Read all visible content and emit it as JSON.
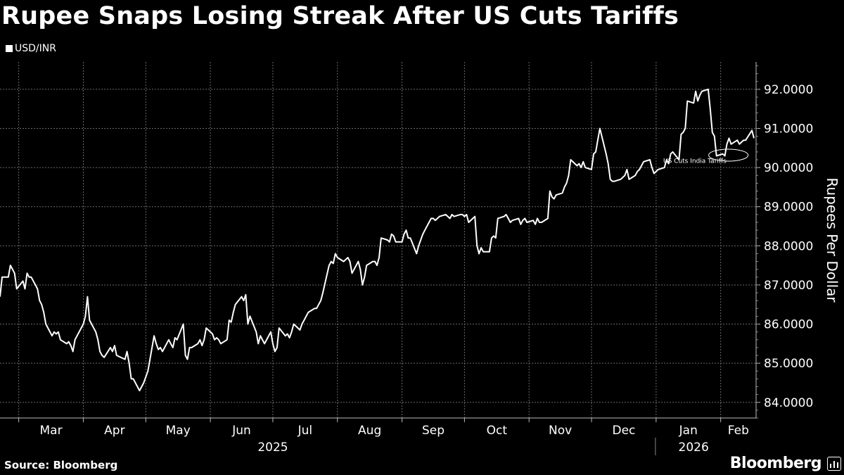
{
  "title": "Rupee Snaps Losing Streak After US Cuts Tariffs",
  "legend_label": "USD/INR",
  "source": "Source: Bloomberg",
  "brand": "Bloomberg",
  "chart_data": {
    "type": "line",
    "title": "Rupee Snaps Losing Streak After US Cuts Tariffs",
    "ylabel": "Rupees Per Dollar",
    "ylim": [
      83.6,
      92.7
    ],
    "y_ticks": [
      84,
      85,
      86,
      87,
      88,
      89,
      90,
      91,
      92
    ],
    "y_tick_labels": [
      "84.0000",
      "85.0000",
      "86.0000",
      "87.0000",
      "88.0000",
      "89.0000",
      "90.0000",
      "91.0000",
      "92.0000"
    ],
    "x_range": [
      "2025-02-20",
      "2026-02-18"
    ],
    "months": [
      {
        "label": "Mar",
        "date": "2025-03-01"
      },
      {
        "label": "Apr",
        "date": "2025-04-01"
      },
      {
        "label": "May",
        "date": "2025-05-01"
      },
      {
        "label": "Jun",
        "date": "2025-06-01"
      },
      {
        "label": "Jul",
        "date": "2025-07-01"
      },
      {
        "label": "Aug",
        "date": "2025-08-01"
      },
      {
        "label": "Sep",
        "date": "2025-09-01"
      },
      {
        "label": "Oct",
        "date": "2025-10-01"
      },
      {
        "label": "Nov",
        "date": "2025-11-01"
      },
      {
        "label": "Dec",
        "date": "2025-12-01"
      },
      {
        "label": "Jan",
        "date": "2026-01-01"
      },
      {
        "label": "Feb",
        "date": "2026-02-01"
      }
    ],
    "years": [
      {
        "label": "2025",
        "date": "2025-07-01"
      },
      {
        "label": "2026",
        "date": "2026-01-19"
      }
    ],
    "annotation": {
      "text": "US Cuts India Tariffs",
      "date": "2026-02-02",
      "value": 90.3
    },
    "series": [
      {
        "name": "USD/INR",
        "points": [
          [
            "2025-02-20",
            86.7
          ],
          [
            "2025-02-21",
            87.2
          ],
          [
            "2025-02-24",
            87.2
          ],
          [
            "2025-02-25",
            87.5
          ],
          [
            "2025-02-26",
            87.4
          ],
          [
            "2025-02-27",
            87.3
          ],
          [
            "2025-02-28",
            86.9
          ],
          [
            "2025-03-03",
            87.1
          ],
          [
            "2025-03-04",
            86.9
          ],
          [
            "2025-03-05",
            87.3
          ],
          [
            "2025-03-06",
            87.2
          ],
          [
            "2025-03-07",
            87.2
          ],
          [
            "2025-03-10",
            86.9
          ],
          [
            "2025-03-11",
            86.6
          ],
          [
            "2025-03-12",
            86.5
          ],
          [
            "2025-03-13",
            86.3
          ],
          [
            "2025-03-14",
            86.0
          ],
          [
            "2025-03-17",
            85.7
          ],
          [
            "2025-03-18",
            85.8
          ],
          [
            "2025-03-19",
            85.75
          ],
          [
            "2025-03-20",
            85.8
          ],
          [
            "2025-03-21",
            85.6
          ],
          [
            "2025-03-24",
            85.5
          ],
          [
            "2025-03-25",
            85.55
          ],
          [
            "2025-03-26",
            85.45
          ],
          [
            "2025-03-27",
            85.3
          ],
          [
            "2025-03-28",
            85.6
          ],
          [
            "2025-04-01",
            86.0
          ],
          [
            "2025-04-02",
            86.2
          ],
          [
            "2025-04-03",
            86.7
          ],
          [
            "2025-04-04",
            86.1
          ],
          [
            "2025-04-07",
            85.8
          ],
          [
            "2025-04-08",
            85.6
          ],
          [
            "2025-04-09",
            85.3
          ],
          [
            "2025-04-10",
            85.2
          ],
          [
            "2025-04-11",
            85.15
          ],
          [
            "2025-04-14",
            85.4
          ],
          [
            "2025-04-15",
            85.3
          ],
          [
            "2025-04-16",
            85.45
          ],
          [
            "2025-04-17",
            85.2
          ],
          [
            "2025-04-21",
            85.1
          ],
          [
            "2025-04-22",
            85.3
          ],
          [
            "2025-04-23",
            85.0
          ],
          [
            "2025-04-24",
            84.6
          ],
          [
            "2025-04-25",
            84.6
          ],
          [
            "2025-04-28",
            84.3
          ],
          [
            "2025-04-29",
            84.4
          ],
          [
            "2025-04-30",
            84.5
          ],
          [
            "2025-05-02",
            84.8
          ],
          [
            "2025-05-05",
            85.7
          ],
          [
            "2025-05-06",
            85.5
          ],
          [
            "2025-05-07",
            85.35
          ],
          [
            "2025-05-08",
            85.4
          ],
          [
            "2025-05-09",
            85.3
          ],
          [
            "2025-05-12",
            85.6
          ],
          [
            "2025-05-13",
            85.5
          ],
          [
            "2025-05-14",
            85.4
          ],
          [
            "2025-05-15",
            85.65
          ],
          [
            "2025-05-16",
            85.6
          ],
          [
            "2025-05-19",
            86.0
          ],
          [
            "2025-05-20",
            85.2
          ],
          [
            "2025-05-21",
            85.1
          ],
          [
            "2025-05-22",
            85.4
          ],
          [
            "2025-05-23",
            85.4
          ],
          [
            "2025-05-26",
            85.5
          ],
          [
            "2025-05-27",
            85.6
          ],
          [
            "2025-05-28",
            85.45
          ],
          [
            "2025-05-29",
            85.6
          ],
          [
            "2025-05-30",
            85.9
          ],
          [
            "2025-06-02",
            85.75
          ],
          [
            "2025-06-03",
            85.6
          ],
          [
            "2025-06-04",
            85.65
          ],
          [
            "2025-06-05",
            85.6
          ],
          [
            "2025-06-06",
            85.5
          ],
          [
            "2025-06-09",
            85.6
          ],
          [
            "2025-06-10",
            86.1
          ],
          [
            "2025-06-11",
            86.05
          ],
          [
            "2025-06-12",
            86.3
          ],
          [
            "2025-06-13",
            86.5
          ],
          [
            "2025-06-16",
            86.7
          ],
          [
            "2025-06-17",
            86.6
          ],
          [
            "2025-06-18",
            86.75
          ],
          [
            "2025-06-19",
            86.0
          ],
          [
            "2025-06-20",
            86.2
          ],
          [
            "2025-06-23",
            85.8
          ],
          [
            "2025-06-24",
            85.5
          ],
          [
            "2025-06-25",
            85.7
          ],
          [
            "2025-06-26",
            85.6
          ],
          [
            "2025-06-27",
            85.5
          ],
          [
            "2025-06-30",
            85.8
          ],
          [
            "2025-07-01",
            85.5
          ],
          [
            "2025-07-02",
            85.3
          ],
          [
            "2025-07-03",
            85.4
          ],
          [
            "2025-07-04",
            85.9
          ],
          [
            "2025-07-07",
            85.7
          ],
          [
            "2025-07-08",
            85.75
          ],
          [
            "2025-07-09",
            85.65
          ],
          [
            "2025-07-10",
            85.8
          ],
          [
            "2025-07-11",
            86.0
          ],
          [
            "2025-07-14",
            85.85
          ],
          [
            "2025-07-15",
            86.0
          ],
          [
            "2025-07-16",
            86.1
          ],
          [
            "2025-07-17",
            86.2
          ],
          [
            "2025-07-18",
            86.3
          ],
          [
            "2025-07-21",
            86.4
          ],
          [
            "2025-07-22",
            86.4
          ],
          [
            "2025-07-23",
            86.5
          ],
          [
            "2025-07-24",
            86.6
          ],
          [
            "2025-07-25",
            86.8
          ],
          [
            "2025-07-28",
            87.5
          ],
          [
            "2025-07-29",
            87.6
          ],
          [
            "2025-07-30",
            87.55
          ],
          [
            "2025-07-31",
            87.8
          ],
          [
            "2025-08-01",
            87.7
          ],
          [
            "2025-08-04",
            87.6
          ],
          [
            "2025-08-05",
            87.65
          ],
          [
            "2025-08-06",
            87.7
          ],
          [
            "2025-08-07",
            87.6
          ],
          [
            "2025-08-08",
            87.3
          ],
          [
            "2025-08-11",
            87.6
          ],
          [
            "2025-08-12",
            87.4
          ],
          [
            "2025-08-13",
            87.0
          ],
          [
            "2025-08-14",
            87.2
          ],
          [
            "2025-08-15",
            87.5
          ],
          [
            "2025-08-18",
            87.6
          ],
          [
            "2025-08-19",
            87.6
          ],
          [
            "2025-08-20",
            87.5
          ],
          [
            "2025-08-21",
            87.7
          ],
          [
            "2025-08-22",
            88.2
          ],
          [
            "2025-08-25",
            88.15
          ],
          [
            "2025-08-26",
            88.1
          ],
          [
            "2025-08-27",
            88.3
          ],
          [
            "2025-08-28",
            88.25
          ],
          [
            "2025-08-29",
            88.1
          ],
          [
            "2025-09-01",
            88.1
          ],
          [
            "2025-09-02",
            88.3
          ],
          [
            "2025-09-03",
            88.4
          ],
          [
            "2025-09-04",
            88.2
          ],
          [
            "2025-09-05",
            88.2
          ],
          [
            "2025-09-08",
            87.8
          ],
          [
            "2025-09-09",
            88.0
          ],
          [
            "2025-09-10",
            88.15
          ],
          [
            "2025-09-11",
            88.3
          ],
          [
            "2025-09-12",
            88.4
          ],
          [
            "2025-09-15",
            88.7
          ],
          [
            "2025-09-16",
            88.7
          ],
          [
            "2025-09-17",
            88.65
          ],
          [
            "2025-09-18",
            88.7
          ],
          [
            "2025-09-19",
            88.75
          ],
          [
            "2025-09-22",
            88.8
          ],
          [
            "2025-09-23",
            88.75
          ],
          [
            "2025-09-24",
            88.7
          ],
          [
            "2025-09-25",
            88.8
          ],
          [
            "2025-09-26",
            88.75
          ],
          [
            "2025-09-29",
            88.8
          ],
          [
            "2025-09-30",
            88.8
          ],
          [
            "2025-10-01",
            88.75
          ],
          [
            "2025-10-02",
            88.8
          ],
          [
            "2025-10-03",
            88.6
          ],
          [
            "2025-10-06",
            88.75
          ],
          [
            "2025-10-07",
            88.0
          ],
          [
            "2025-10-08",
            87.8
          ],
          [
            "2025-10-09",
            87.95
          ],
          [
            "2025-10-10",
            87.85
          ],
          [
            "2025-10-13",
            87.85
          ],
          [
            "2025-10-14",
            88.2
          ],
          [
            "2025-10-15",
            88.25
          ],
          [
            "2025-10-16",
            88.2
          ],
          [
            "2025-10-17",
            88.7
          ],
          [
            "2025-10-20",
            88.75
          ],
          [
            "2025-10-21",
            88.8
          ],
          [
            "2025-10-22",
            88.7
          ],
          [
            "2025-10-23",
            88.6
          ],
          [
            "2025-10-24",
            88.65
          ],
          [
            "2025-10-27",
            88.7
          ],
          [
            "2025-10-28",
            88.55
          ],
          [
            "2025-10-29",
            88.65
          ],
          [
            "2025-10-30",
            88.7
          ],
          [
            "2025-10-31",
            88.6
          ],
          [
            "2025-11-03",
            88.65
          ],
          [
            "2025-11-04",
            88.55
          ],
          [
            "2025-11-05",
            88.7
          ],
          [
            "2025-11-06",
            88.6
          ],
          [
            "2025-11-07",
            88.6
          ],
          [
            "2025-11-10",
            88.7
          ],
          [
            "2025-11-11",
            89.4
          ],
          [
            "2025-11-12",
            89.25
          ],
          [
            "2025-11-13",
            89.2
          ],
          [
            "2025-11-14",
            89.3
          ],
          [
            "2025-11-17",
            89.35
          ],
          [
            "2025-11-18",
            89.5
          ],
          [
            "2025-11-19",
            89.6
          ],
          [
            "2025-11-20",
            89.8
          ],
          [
            "2025-11-21",
            90.2
          ],
          [
            "2025-11-24",
            90.05
          ],
          [
            "2025-11-25",
            90.1
          ],
          [
            "2025-11-26",
            90.0
          ],
          [
            "2025-11-27",
            90.15
          ],
          [
            "2025-11-28",
            90.0
          ],
          [
            "2025-12-01",
            89.95
          ],
          [
            "2025-12-02",
            90.35
          ],
          [
            "2025-12-03",
            90.4
          ],
          [
            "2025-12-04",
            90.7
          ],
          [
            "2025-12-05",
            91.0
          ],
          [
            "2025-12-08",
            90.35
          ],
          [
            "2025-12-09",
            90.1
          ],
          [
            "2025-12-10",
            89.7
          ],
          [
            "2025-12-11",
            89.65
          ],
          [
            "2025-12-12",
            89.65
          ],
          [
            "2025-12-15",
            89.7
          ],
          [
            "2025-12-16",
            89.75
          ],
          [
            "2025-12-17",
            89.8
          ],
          [
            "2025-12-18",
            89.95
          ],
          [
            "2025-12-19",
            89.7
          ],
          [
            "2025-12-22",
            89.8
          ],
          [
            "2025-12-23",
            89.9
          ],
          [
            "2025-12-24",
            89.95
          ],
          [
            "2025-12-26",
            90.15
          ],
          [
            "2025-12-29",
            90.2
          ],
          [
            "2025-12-30",
            90.0
          ],
          [
            "2025-12-31",
            89.85
          ],
          [
            "2026-01-02",
            89.95
          ],
          [
            "2026-01-05",
            90.0
          ],
          [
            "2026-01-06",
            90.2
          ],
          [
            "2026-01-07",
            90.1
          ],
          [
            "2026-01-08",
            90.35
          ],
          [
            "2026-01-09",
            90.4
          ],
          [
            "2026-01-12",
            90.2
          ],
          [
            "2026-01-13",
            90.85
          ],
          [
            "2026-01-14",
            90.9
          ],
          [
            "2026-01-15",
            91.0
          ],
          [
            "2026-01-16",
            91.7
          ],
          [
            "2026-01-19",
            91.65
          ],
          [
            "2026-01-20",
            91.95
          ],
          [
            "2026-01-21",
            91.7
          ],
          [
            "2026-01-22",
            91.85
          ],
          [
            "2026-01-23",
            91.95
          ],
          [
            "2026-01-26",
            92.0
          ],
          [
            "2026-01-27",
            91.5
          ],
          [
            "2026-01-28",
            90.9
          ],
          [
            "2026-01-29",
            90.8
          ],
          [
            "2026-01-30",
            90.3
          ],
          [
            "2026-02-02",
            90.35
          ],
          [
            "2026-02-03",
            90.3
          ],
          [
            "2026-02-04",
            90.6
          ],
          [
            "2026-02-05",
            90.75
          ],
          [
            "2026-02-06",
            90.6
          ],
          [
            "2026-02-09",
            90.7
          ],
          [
            "2026-02-10",
            90.6
          ],
          [
            "2026-02-11",
            90.65
          ],
          [
            "2026-02-12",
            90.7
          ],
          [
            "2026-02-13",
            90.7
          ],
          [
            "2026-02-16",
            90.95
          ],
          [
            "2026-02-17",
            90.75
          ]
        ]
      }
    ]
  }
}
